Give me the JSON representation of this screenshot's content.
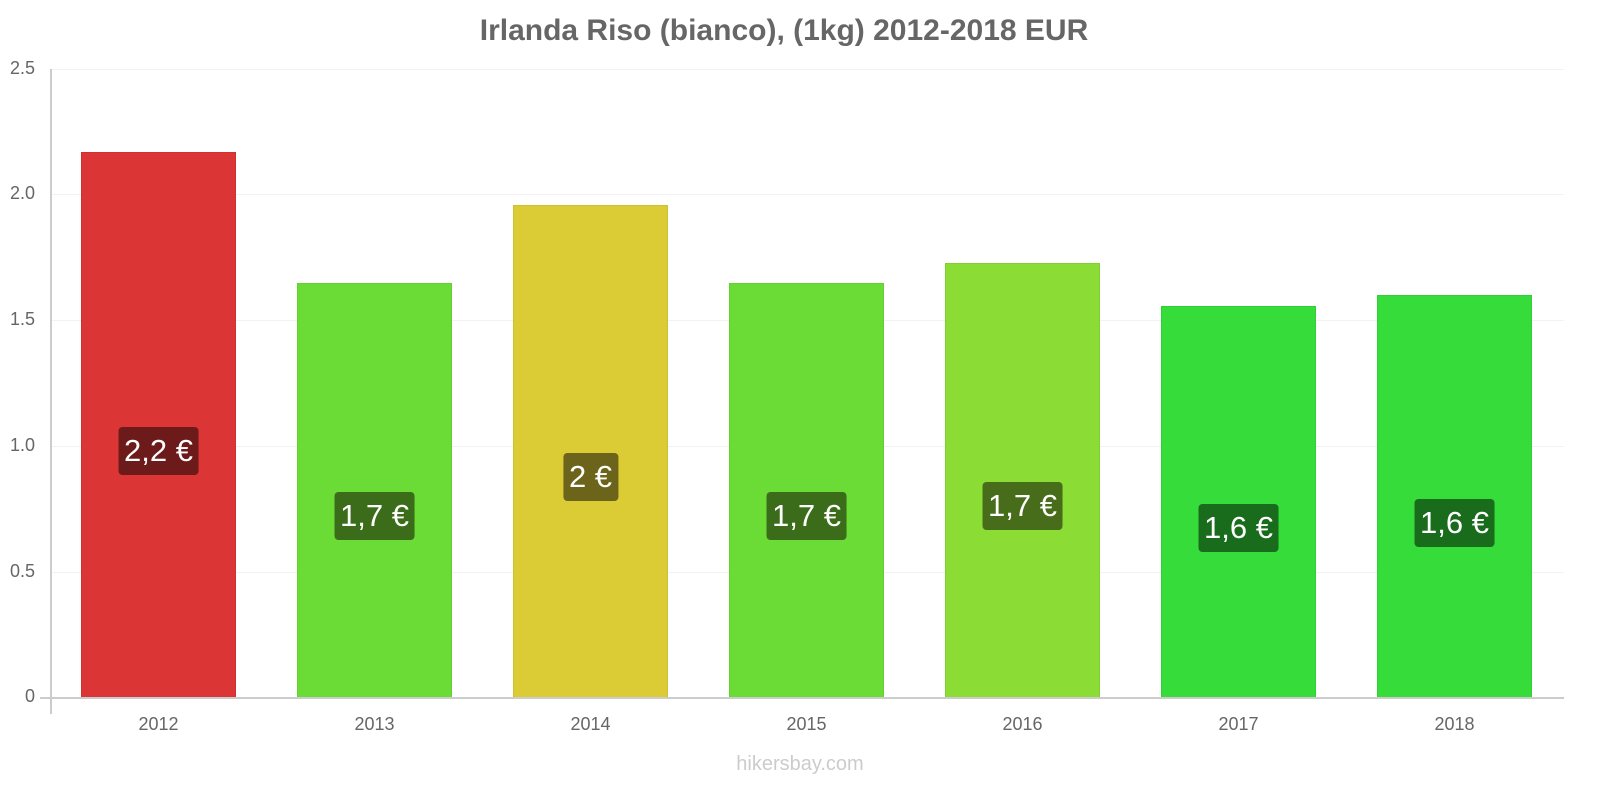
{
  "chart_data": {
    "type": "bar",
    "title": "Irlanda Riso (bianco), (1kg) 2012-2018 EUR",
    "xlabel": "",
    "ylabel": "",
    "ylim": [
      0,
      2.5
    ],
    "yticks": [
      "0",
      "0.5",
      "1.0",
      "1.5",
      "2.0",
      "2.5"
    ],
    "grid": true,
    "categories": [
      "2012",
      "2013",
      "2014",
      "2015",
      "2016",
      "2017",
      "2018"
    ],
    "values": [
      2.17,
      1.65,
      1.96,
      1.65,
      1.73,
      1.56,
      1.6
    ],
    "data_labels": [
      "2,2 €",
      "1,7 €",
      "2 €",
      "1,7 €",
      "1,7 €",
      "1,6 €",
      "1,6 €"
    ],
    "bar_colors": [
      "#db3535",
      "#6bdc35",
      "#dbcc35",
      "#6bdc35",
      "#8bdc35",
      "#35dc3a",
      "#35dc3a"
    ],
    "label_colors": [
      "#6c1a1a",
      "#3a6c1a",
      "#6c641a",
      "#3a6c1a",
      "#476c1a",
      "#1a6c1d",
      "#1a6c1d"
    ]
  },
  "watermark": "hikersbay.com"
}
